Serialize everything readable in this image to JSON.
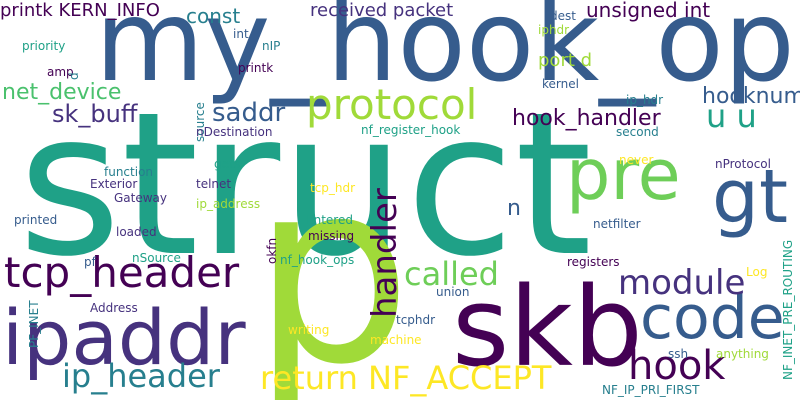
{
  "words": [
    {
      "text": "struct",
      "color": "#1fa187"
    },
    {
      "text": "my_hook_ops",
      "color": "#365c8d"
    },
    {
      "text": "p",
      "color": "#a0da39"
    },
    {
      "text": "skb",
      "color": "#440154"
    },
    {
      "text": "ipaddr",
      "color": "#46327e"
    },
    {
      "text": "pre",
      "color": "#6ece58"
    },
    {
      "text": "gt",
      "color": "#365c8d"
    },
    {
      "text": "code",
      "color": "#365c8d"
    },
    {
      "text": "tcp_header",
      "color": "#440154"
    },
    {
      "text": "protocol",
      "color": "#a0da39"
    },
    {
      "text": "return NF_ACCEPT",
      "color": "#fde725"
    },
    {
      "text": "ip_header",
      "color": "#277f8e"
    },
    {
      "text": "hook",
      "color": "#440154"
    },
    {
      "text": "module",
      "color": "#46327e"
    },
    {
      "text": "called",
      "color": "#6ece58"
    },
    {
      "text": "handler",
      "color": "#440154"
    },
    {
      "text": "hook_handler",
      "color": "#440154"
    },
    {
      "text": "u u",
      "color": "#1fa187"
    },
    {
      "text": "hooknum",
      "color": "#365c8d"
    },
    {
      "text": "saddr",
      "color": "#365c8d"
    },
    {
      "text": "sk_buff",
      "color": "#46327e"
    },
    {
      "text": "net_device",
      "color": "#4ac16d"
    },
    {
      "text": "const",
      "color": "#277f8e"
    },
    {
      "text": "unsigned int",
      "color": "#440154"
    },
    {
      "text": "received packet",
      "color": "#46327e"
    },
    {
      "text": "printk KERN_INFO",
      "color": "#440154"
    },
    {
      "text": "port d",
      "color": "#a0da39"
    },
    {
      "text": "n",
      "color": "#365c8d"
    },
    {
      "text": "priority",
      "color": "#1fa187"
    },
    {
      "text": "int",
      "color": "#365c8d"
    },
    {
      "text": "nIP",
      "color": "#277f8e"
    },
    {
      "text": "amp",
      "color": "#440154"
    },
    {
      "text": "d",
      "color": "#277f8e"
    },
    {
      "text": "printk",
      "color": "#440154"
    },
    {
      "text": "dest",
      "color": "#365c8d"
    },
    {
      "text": "iphdr",
      "color": "#a0da39"
    },
    {
      "text": "kernel",
      "color": "#365c8d"
    },
    {
      "text": "ip_hdr",
      "color": "#277f8e"
    },
    {
      "text": "source",
      "color": "#277f8e"
    },
    {
      "text": "nDestination",
      "color": "#46327e"
    },
    {
      "text": "nf_register_hook",
      "color": "#1fa187"
    },
    {
      "text": "second",
      "color": "#277f8e"
    },
    {
      "text": "never",
      "color": "#fde725"
    },
    {
      "text": "nProtocol",
      "color": "#46327e"
    },
    {
      "text": "function",
      "color": "#277f8e"
    },
    {
      "text": "gets",
      "color": "#1fa187"
    },
    {
      "text": "Exterior",
      "color": "#46327e"
    },
    {
      "text": "telnet",
      "color": "#46327e"
    },
    {
      "text": "tcp_hdr",
      "color": "#fde725"
    },
    {
      "text": "Gateway",
      "color": "#46327e"
    },
    {
      "text": "ip_address",
      "color": "#a0da39"
    },
    {
      "text": "printed",
      "color": "#365c8d"
    },
    {
      "text": "Entered",
      "color": "#1fa187"
    },
    {
      "text": "loaded",
      "color": "#46327e"
    },
    {
      "text": "missing",
      "color": "#440154"
    },
    {
      "text": "netfilter",
      "color": "#365c8d"
    },
    {
      "text": "okfn",
      "color": "#440154"
    },
    {
      "text": "nSource",
      "color": "#1fa187"
    },
    {
      "text": "nf_hook_ops",
      "color": "#1fa187"
    },
    {
      "text": "pf",
      "color": "#365c8d"
    },
    {
      "text": "registers",
      "color": "#440154"
    },
    {
      "text": "Log",
      "color": "#fde725"
    },
    {
      "text": "NF_INET_PRE_ROUTING",
      "color": "#1fa187"
    },
    {
      "text": "union",
      "color": "#365c8d"
    },
    {
      "text": "Address",
      "color": "#46327e"
    },
    {
      "text": "PF_INET",
      "color": "#277f8e"
    },
    {
      "text": "writing",
      "color": "#fde725"
    },
    {
      "text": "tcphdr",
      "color": "#365c8d"
    },
    {
      "text": "machine",
      "color": "#fde725"
    },
    {
      "text": "ssh",
      "color": "#365c8d"
    },
    {
      "text": "anything",
      "color": "#a0da39"
    },
    {
      "text": "NF_IP_PRI_FIRST",
      "color": "#277f8e"
    }
  ]
}
